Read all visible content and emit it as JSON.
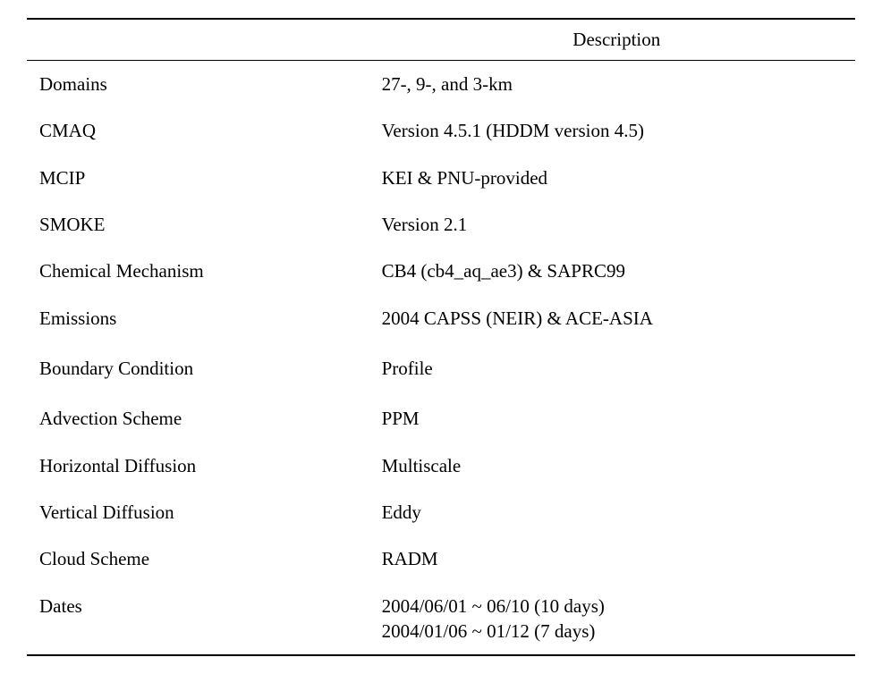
{
  "table": {
    "header": {
      "label_col": "",
      "desc_col": "Description"
    },
    "rows": [
      {
        "label": "Domains",
        "desc": "27-, 9-, and 3-km",
        "tall": false
      },
      {
        "label": "CMAQ",
        "desc": "Version 4.5.1 (HDDM version 4.5)",
        "tall": false
      },
      {
        "label": "MCIP",
        "desc": "KEI & PNU-provided",
        "tall": false
      },
      {
        "label": "SMOKE",
        "desc": "Version 2.1",
        "tall": false
      },
      {
        "label": "Chemical Mechanism",
        "desc": "CB4 (cb4_aq_ae3) & SAPRC99",
        "tall": false
      },
      {
        "label": "Emissions",
        "desc": "2004 CAPSS (NEIR) & ACE-ASIA",
        "tall": false
      },
      {
        "label": "Boundary Condition",
        "desc": "Profile",
        "tall": true
      },
      {
        "label": "Advection Scheme",
        "desc": "PPM",
        "tall": false
      },
      {
        "label": "Horizontal Diffusion",
        "desc": "Multiscale",
        "tall": false
      },
      {
        "label": "Vertical Diffusion",
        "desc": "Eddy",
        "tall": false
      },
      {
        "label": "Cloud Scheme",
        "desc": "RADM",
        "tall": false
      },
      {
        "label": "Dates",
        "desc_line1": "2004/06/01 ~ 06/10 (10 days)",
        "desc_line2": "2004/01/06 ~ 01/12 (7 days)",
        "multiline": true,
        "tall": false
      }
    ],
    "styling": {
      "border_color": "#000000",
      "background_color": "#ffffff",
      "text_color": "#000000",
      "header_fontsize": 21,
      "cell_fontsize": 21,
      "top_border_width": 2,
      "header_bottom_border_width": 1.5,
      "bottom_border_width": 2,
      "label_col_width_pct": 42,
      "desc_col_width_pct": 58
    }
  }
}
